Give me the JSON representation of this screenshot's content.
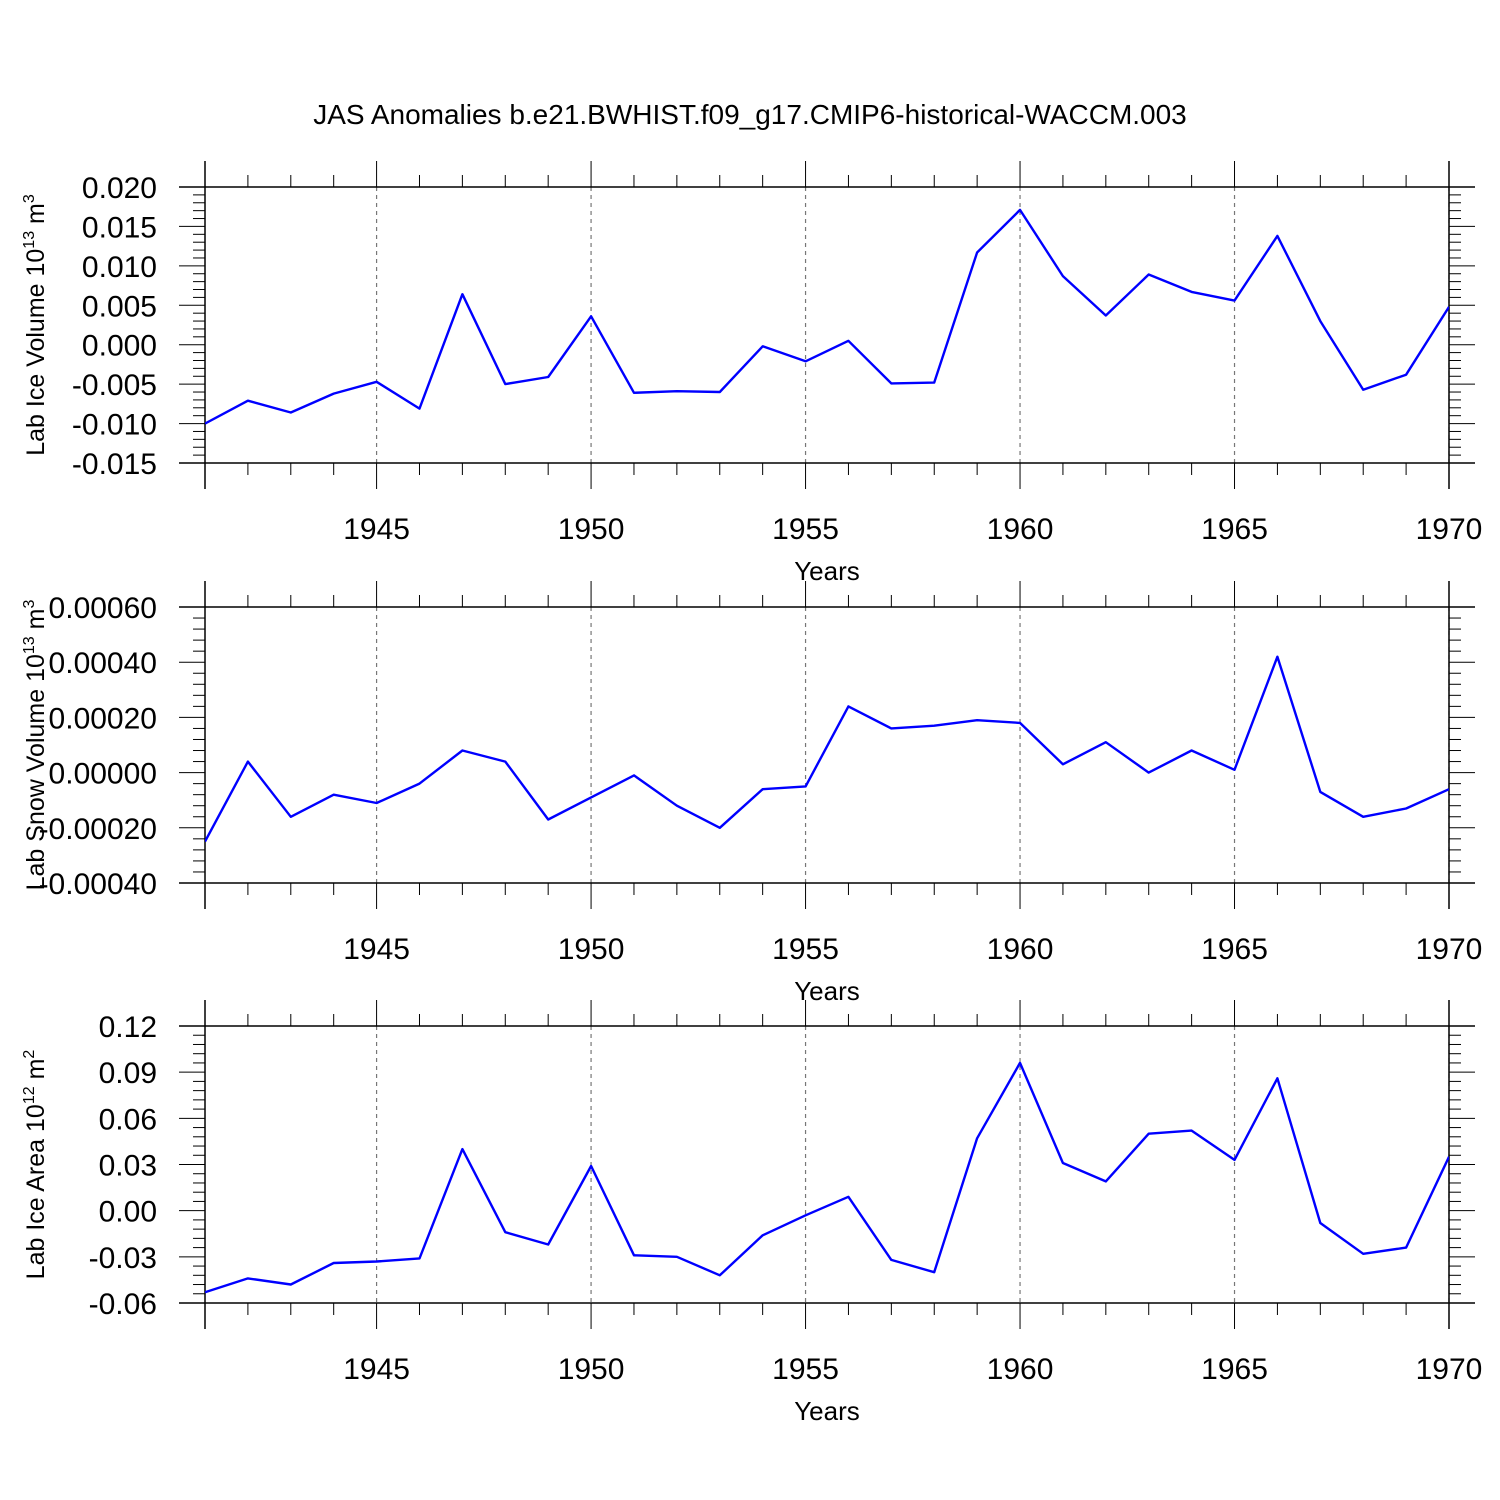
{
  "title": "JAS Anomalies b.e21.BWHIST.f09_g17.CMIP6-historical-WACCM.003",
  "chart_data": [
    {
      "type": "line",
      "ylabel": "Lab Ice Volume 10",
      "ylabel_exp": "13",
      "ylabel_unit": " m",
      "ylabel_unit_exp": "3",
      "xlabel": "Years",
      "xlim": [
        1941,
        1970
      ],
      "ylim": [
        -0.015,
        0.02
      ],
      "yticks": [
        -0.015,
        -0.01,
        -0.005,
        0.0,
        0.005,
        0.01,
        0.015,
        0.02
      ],
      "ytick_labels": [
        "-0.015",
        "-0.010",
        "-0.005",
        "0.000",
        "0.005",
        "0.010",
        "0.015",
        "0.020"
      ],
      "xticks": [
        1945,
        1950,
        1955,
        1960,
        1965,
        1970
      ],
      "xtick_labels": [
        "1945",
        "1950",
        "1955",
        "1960",
        "1965",
        "1970"
      ],
      "series": [
        {
          "name": "Lab Ice Volume",
          "color": "#0000ff",
          "x": [
            1941,
            1942,
            1943,
            1944,
            1945,
            1946,
            1947,
            1948,
            1949,
            1950,
            1951,
            1952,
            1953,
            1954,
            1955,
            1956,
            1957,
            1958,
            1959,
            1960,
            1961,
            1962,
            1963,
            1964,
            1965,
            1966,
            1967,
            1968,
            1969,
            1970
          ],
          "values": [
            -0.01,
            -0.0071,
            -0.0086,
            -0.0062,
            -0.0047,
            -0.0081,
            0.0064,
            -0.005,
            -0.0041,
            0.0036,
            -0.0061,
            -0.0059,
            -0.006,
            -0.0002,
            -0.0021,
            0.0005,
            -0.0049,
            -0.0048,
            0.0117,
            0.0171,
            0.0087,
            0.0037,
            0.0089,
            0.0067,
            0.0056,
            0.0138,
            0.003,
            -0.0057,
            -0.0038,
            0.0048
          ]
        }
      ]
    },
    {
      "type": "line",
      "ylabel": "Lab Snow Volume 10",
      "ylabel_exp": "13",
      "ylabel_unit": " m",
      "ylabel_unit_exp": "3",
      "xlabel": "Years",
      "xlim": [
        1941,
        1970
      ],
      "ylim": [
        -0.0004,
        0.0006
      ],
      "yticks": [
        -0.0004,
        -0.0002,
        0.0,
        0.0002,
        0.0004,
        0.0006
      ],
      "ytick_labels": [
        "-0.00040",
        "-0.00020",
        "0.00000",
        "0.00020",
        "0.00040",
        "0.00060"
      ],
      "xticks": [
        1945,
        1950,
        1955,
        1960,
        1965,
        1970
      ],
      "xtick_labels": [
        "1945",
        "1950",
        "1955",
        "1960",
        "1965",
        "1970"
      ],
      "series": [
        {
          "name": "Lab Snow Volume",
          "color": "#0000ff",
          "x": [
            1941,
            1942,
            1943,
            1944,
            1945,
            1946,
            1947,
            1948,
            1949,
            1950,
            1951,
            1952,
            1953,
            1954,
            1955,
            1956,
            1957,
            1958,
            1959,
            1960,
            1961,
            1962,
            1963,
            1964,
            1965,
            1966,
            1967,
            1968,
            1969,
            1970
          ],
          "values": [
            -0.00025,
            4e-05,
            -0.00016,
            -8e-05,
            -0.00011,
            -4e-05,
            8e-05,
            4e-05,
            -0.00017,
            -9e-05,
            -1e-05,
            -0.00012,
            -0.0002,
            -6e-05,
            -5e-05,
            0.00024,
            0.00016,
            0.00017,
            0.00019,
            0.00018,
            3e-05,
            0.00011,
            0.0,
            8e-05,
            1e-05,
            0.00042,
            -7e-05,
            -0.00016,
            -0.00013,
            -6e-05
          ]
        }
      ]
    },
    {
      "type": "line",
      "ylabel": "Lab Ice Area 10",
      "ylabel_exp": "12",
      "ylabel_unit": " m",
      "ylabel_unit_exp": "2",
      "xlabel": "Years",
      "xlim": [
        1941,
        1970
      ],
      "ylim": [
        -0.06,
        0.12
      ],
      "yticks": [
        -0.06,
        -0.03,
        0.0,
        0.03,
        0.06,
        0.09,
        0.12
      ],
      "ytick_labels": [
        "-0.06",
        "-0.03",
        "0.00",
        "0.03",
        "0.06",
        "0.09",
        "0.12"
      ],
      "xticks": [
        1945,
        1950,
        1955,
        1960,
        1965,
        1970
      ],
      "xtick_labels": [
        "1945",
        "1950",
        "1955",
        "1960",
        "1965",
        "1970"
      ],
      "series": [
        {
          "name": "Lab Ice Area",
          "color": "#0000ff",
          "x": [
            1941,
            1942,
            1943,
            1944,
            1945,
            1946,
            1947,
            1948,
            1949,
            1950,
            1951,
            1952,
            1953,
            1954,
            1955,
            1956,
            1957,
            1958,
            1959,
            1960,
            1961,
            1962,
            1963,
            1964,
            1965,
            1966,
            1967,
            1968,
            1969,
            1970
          ],
          "values": [
            -0.053,
            -0.044,
            -0.048,
            -0.034,
            -0.033,
            -0.031,
            0.04,
            -0.014,
            -0.022,
            0.029,
            -0.029,
            -0.03,
            -0.042,
            -0.016,
            -0.003,
            0.009,
            -0.032,
            -0.04,
            0.047,
            0.096,
            0.031,
            0.019,
            0.05,
            0.052,
            0.033,
            0.086,
            -0.008,
            -0.028,
            -0.024,
            0.035
          ]
        }
      ]
    }
  ]
}
